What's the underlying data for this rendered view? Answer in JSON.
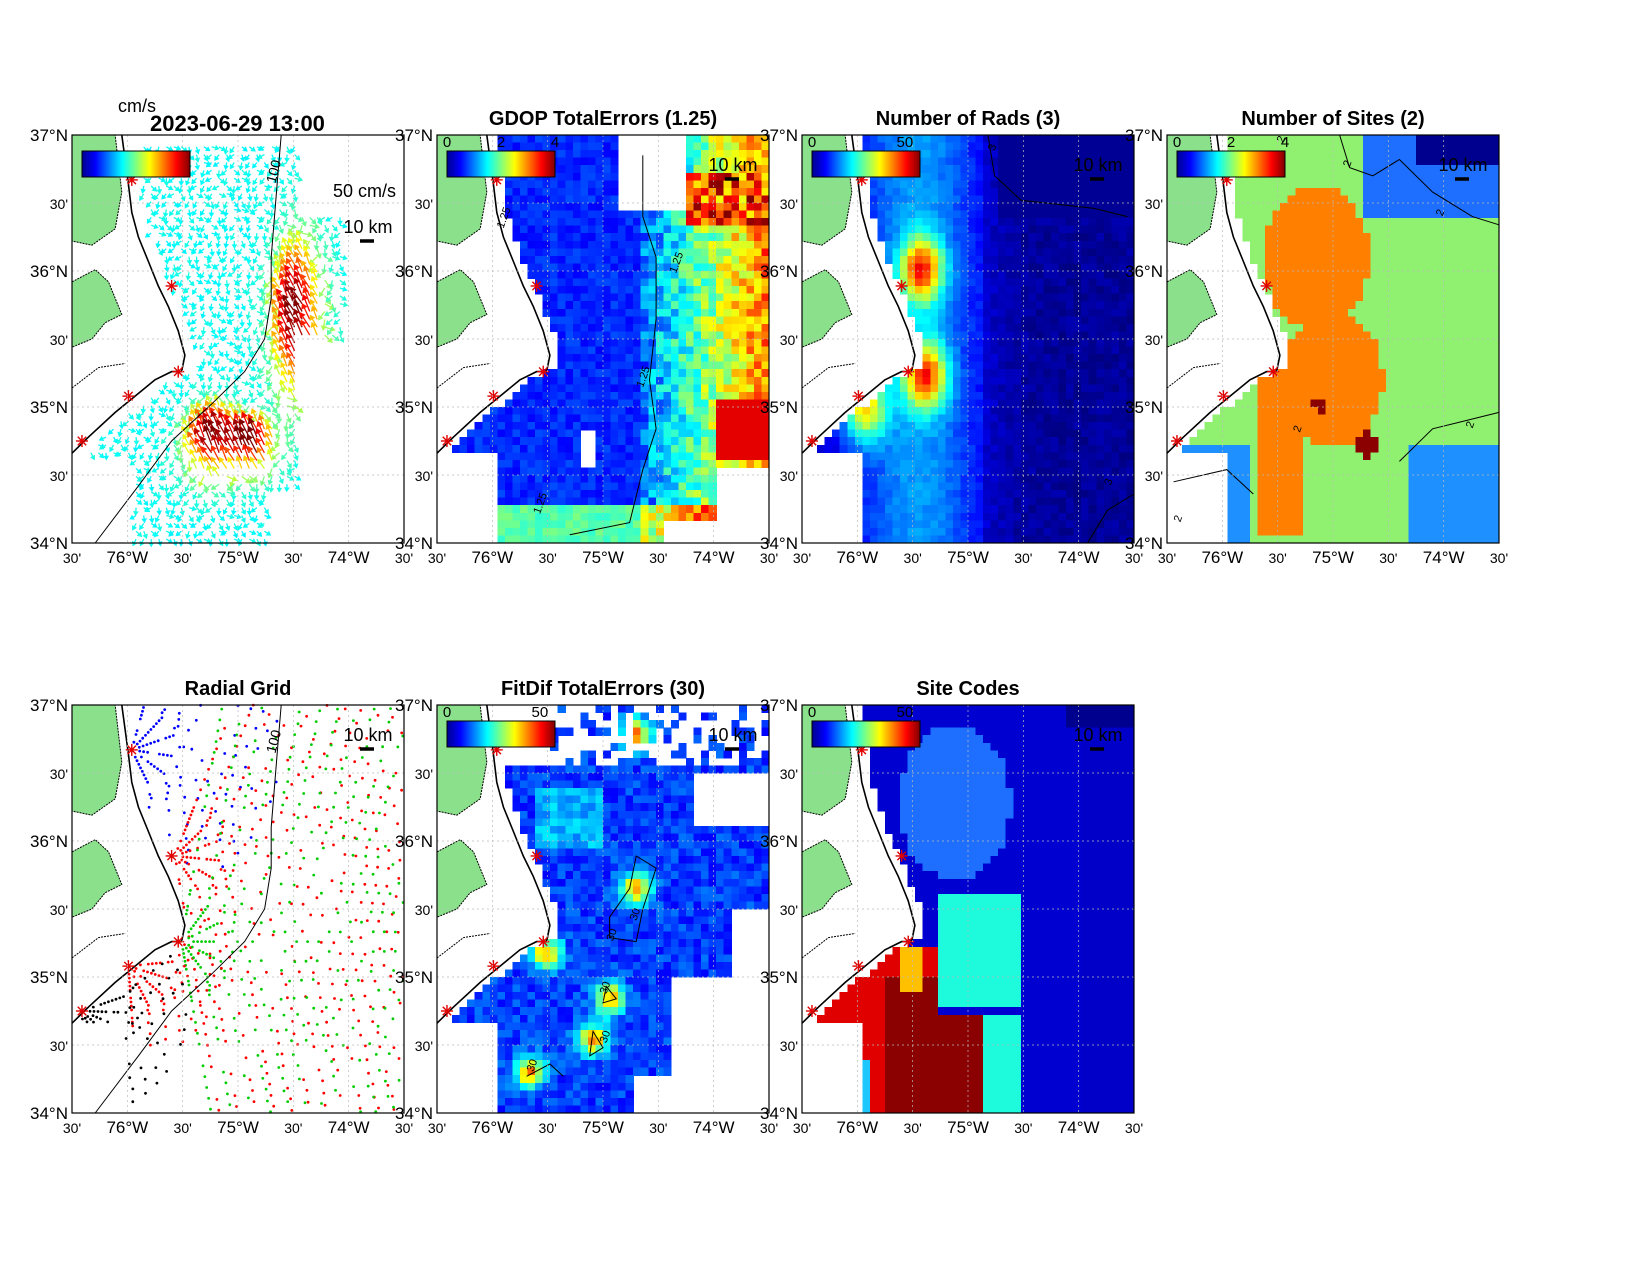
{
  "figure": {
    "timestamp": "2023-06-29 13:00",
    "unit_label": "cm/s"
  },
  "colors": {
    "land": "#8be08b",
    "grid": "#bbbbbb",
    "coast": "#000000",
    "site_marker": "#e00000",
    "frame": "#000000"
  },
  "axes": {
    "lat_labels": [
      "37°N",
      "30'",
      "36°N",
      "30'",
      "35°N",
      "30'",
      "34°N"
    ],
    "lon_labels": [
      "30'",
      "76°W",
      "30'",
      "75°W",
      "30'",
      "74°W",
      "30'"
    ]
  },
  "panels": [
    {
      "id": "totals",
      "title": "",
      "colorbar": {
        "labels": []
      },
      "scale_vector_label": "50 cm/s",
      "scale_bar_label": "10 km",
      "field": "vectors",
      "contour_label": "100"
    },
    {
      "id": "gdop",
      "title": "GDOP TotalErrors (1.25)",
      "colorbar": {
        "labels": [
          "0",
          "2",
          "4"
        ]
      },
      "scale_bar_label": "10 km",
      "field": "gdop",
      "contour_label": "1.25"
    },
    {
      "id": "nrads",
      "title": "Number of Rads (3)",
      "colorbar": {
        "labels": [
          "0",
          "50"
        ]
      },
      "scale_bar_label": "10 km",
      "field": "nrads",
      "contour_label": "3"
    },
    {
      "id": "nsites",
      "title": "Number of Sites (2)",
      "colorbar": {
        "labels": [
          "0",
          "2",
          "4"
        ]
      },
      "scale_bar_label": "10 km",
      "field": "nsites",
      "contour_label": "2"
    },
    {
      "id": "radial_grid",
      "title": "Radial Grid",
      "scale_bar_label": "10 km",
      "field": "radial",
      "contour_label": "100"
    },
    {
      "id": "fitdif",
      "title": "FitDif TotalErrors (30)",
      "colorbar": {
        "labels": [
          "0",
          "50"
        ]
      },
      "scale_bar_label": "10 km",
      "field": "fitdif",
      "contour_label": "30"
    },
    {
      "id": "site_codes",
      "title": "Site Codes",
      "colorbar": {
        "labels": [
          "0",
          "50"
        ]
      },
      "scale_bar_label": "10 km",
      "field": "sitecodes"
    }
  ]
}
